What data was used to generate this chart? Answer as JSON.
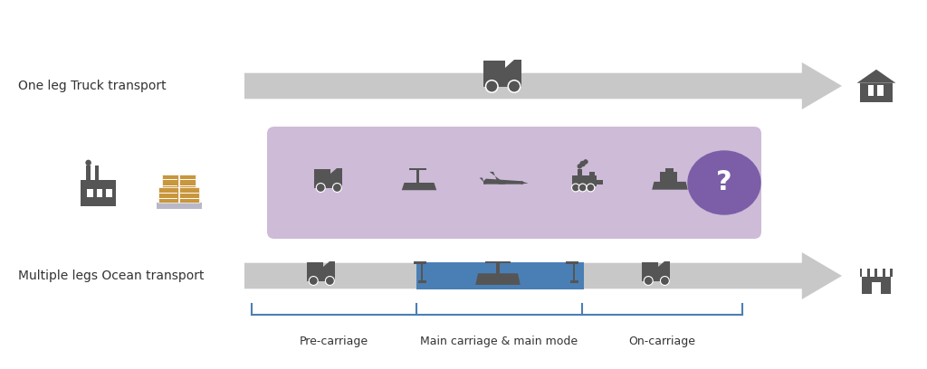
{
  "background_color": "#ffffff",
  "arrow_color": "#c8c8c8",
  "label_top": "One leg Truck transport",
  "label_bottom": "Multiple legs Ocean transport",
  "label_fontsize": 10,
  "label_color": "#333333",
  "purple_box_color": "#c8b4d4",
  "purple_circle_color": "#7b5ea7",
  "blue_bar_color": "#4a7fb5",
  "bracket_color": "#4a7fb5",
  "label_precarriage": "Pre-carriage",
  "label_maincarriage": "Main carriage & main mode",
  "label_oncarriage": "On-carriage",
  "sublabel_fontsize": 9,
  "icon_color": "#555555",
  "icon_color_dark": "#4a4a4a"
}
